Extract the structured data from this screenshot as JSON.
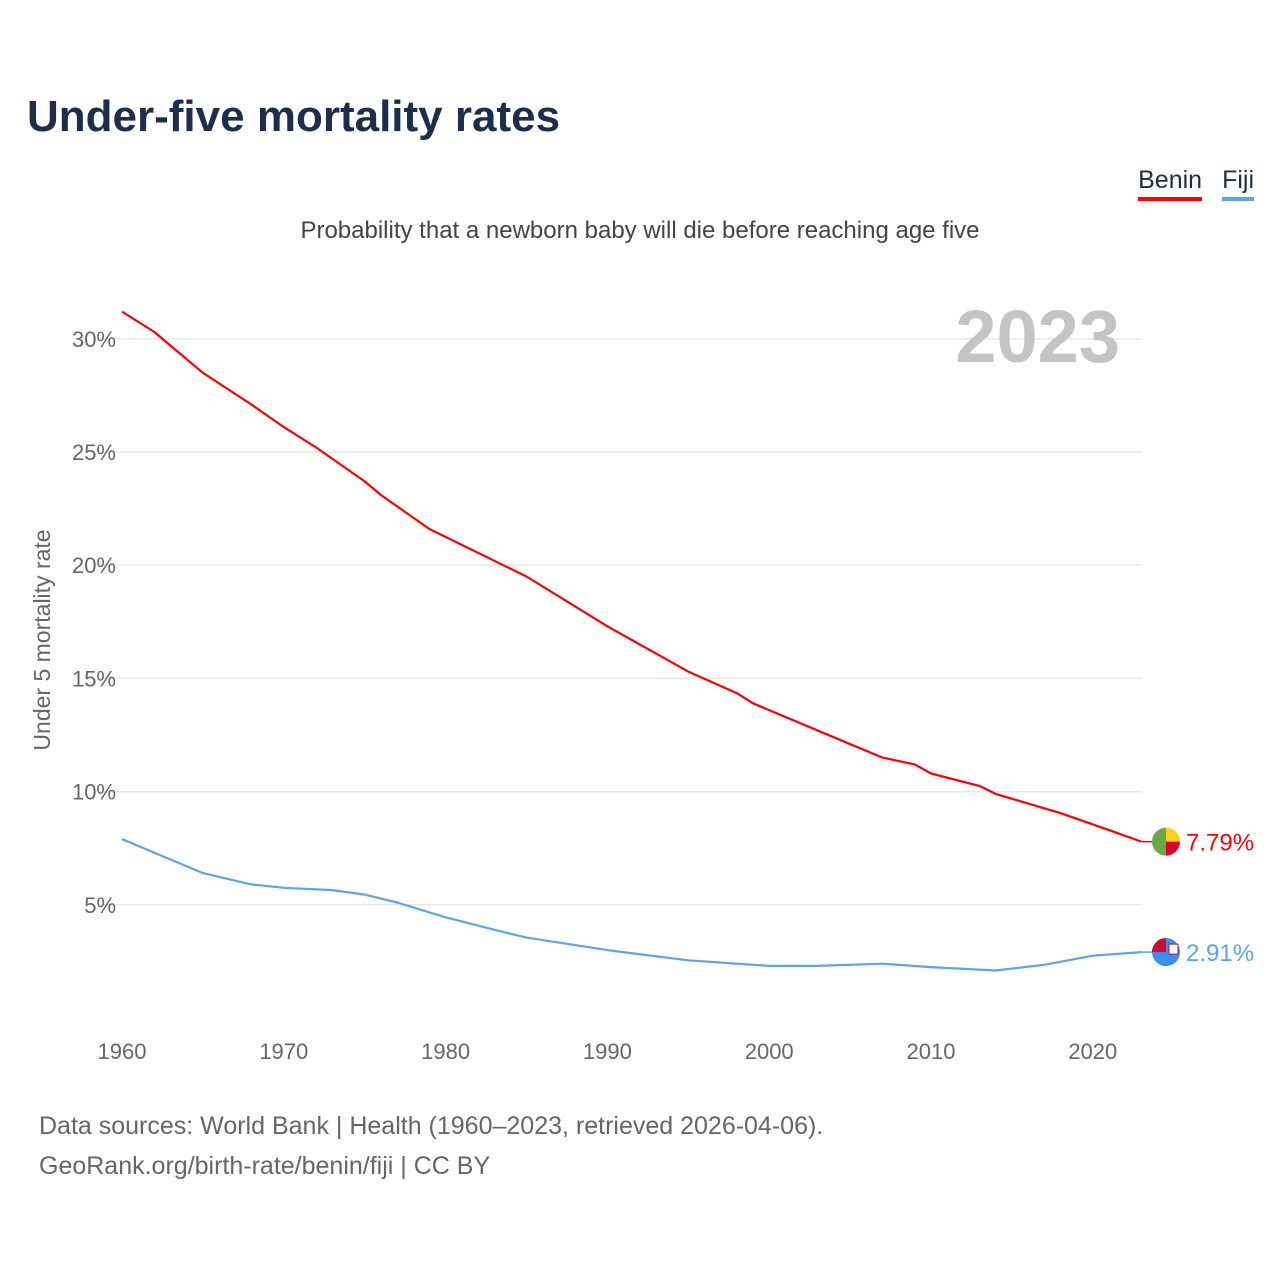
{
  "header": {
    "title": "Under-five mortality rates",
    "subtitle": "Probability that a newborn baby will die before reaching age five"
  },
  "footer": {
    "source_line": "Data sources: World Bank | Health (1960–2023, retrieved 2026-04-06).",
    "credit_line": "GeoRank.org/birth-rate/benin/fiji | CC BY"
  },
  "chart_data": {
    "type": "line",
    "title": "Under-five mortality rates",
    "subtitle": "Probability that a newborn baby will die before reaching age five",
    "xlabel": "",
    "ylabel": "Under 5 mortality rate",
    "year_label": "2023",
    "xlim": [
      1960,
      2023
    ],
    "ylim": [
      0,
      32
    ],
    "x_ticks": [
      1960,
      1970,
      1980,
      1990,
      2000,
      2010,
      2020
    ],
    "y_ticks": [
      5,
      10,
      15,
      20,
      25,
      30
    ],
    "y_tick_labels": [
      "5%",
      "10%",
      "15%",
      "20%",
      "25%",
      "30%"
    ],
    "grid": true,
    "legend_position": "top-right",
    "series": [
      {
        "name": "Benin",
        "color": "#ff0000",
        "end_label": "7.79%",
        "flag": "benin-flag",
        "points": [
          [
            1960,
            31.2
          ],
          [
            1962,
            30.3
          ],
          [
            1963,
            29.7
          ],
          [
            1965,
            28.5
          ],
          [
            1968,
            27.1
          ],
          [
            1970,
            26.1
          ],
          [
            1972,
            25.2
          ],
          [
            1975,
            23.7
          ],
          [
            1976,
            23.1
          ],
          [
            1979,
            21.6
          ],
          [
            1985,
            19.5
          ],
          [
            1990,
            17.3
          ],
          [
            1995,
            15.3
          ],
          [
            1998,
            14.35
          ],
          [
            1999,
            13.9
          ],
          [
            2000,
            13.6
          ],
          [
            2004,
            12.4
          ],
          [
            2007,
            11.5
          ],
          [
            2009,
            11.2
          ],
          [
            2010,
            10.8
          ],
          [
            2013,
            10.25
          ],
          [
            2014,
            9.9
          ],
          [
            2018,
            9.05
          ],
          [
            2021,
            8.3
          ],
          [
            2023,
            7.79
          ]
        ]
      },
      {
        "name": "Fiji",
        "color": "#5aa5ee",
        "end_label": "2.91%",
        "flag": "fiji-flag",
        "points": [
          [
            1960,
            7.9
          ],
          [
            1963,
            7.0
          ],
          [
            1965,
            6.4
          ],
          [
            1968,
            5.9
          ],
          [
            1970,
            5.75
          ],
          [
            1973,
            5.65
          ],
          [
            1975,
            5.45
          ],
          [
            1977,
            5.1
          ],
          [
            1980,
            4.45
          ],
          [
            1983,
            3.9
          ],
          [
            1985,
            3.55
          ],
          [
            1990,
            3.0
          ],
          [
            1995,
            2.55
          ],
          [
            2000,
            2.3
          ],
          [
            2003,
            2.3
          ],
          [
            2007,
            2.4
          ],
          [
            2010,
            2.25
          ],
          [
            2014,
            2.1
          ],
          [
            2017,
            2.35
          ],
          [
            2020,
            2.75
          ],
          [
            2023,
            2.91
          ]
        ]
      }
    ]
  }
}
